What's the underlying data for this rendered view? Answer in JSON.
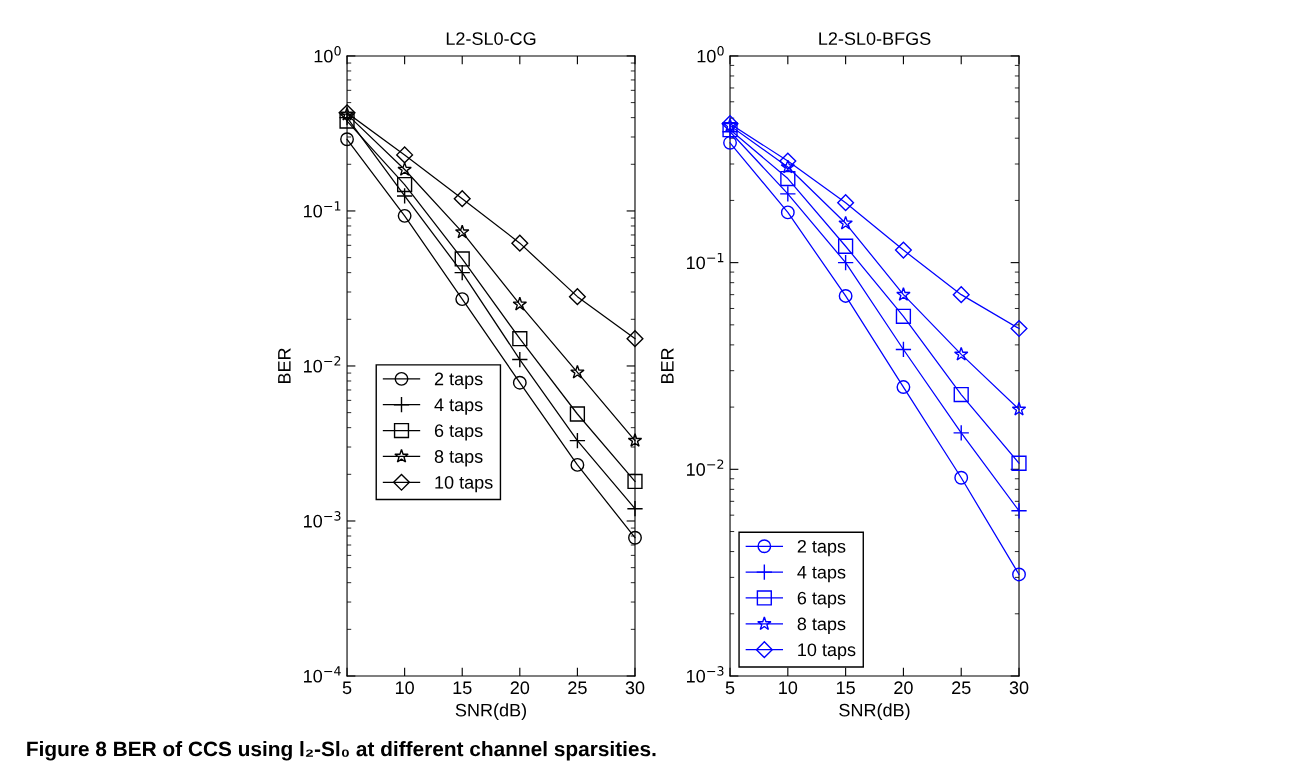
{
  "chart_data": [
    {
      "type": "line",
      "title": "L2-SL0-CG",
      "xlabel": "SNR(dB)",
      "ylabel": "BER",
      "log": "y",
      "grid": false,
      "legend": "bottom left",
      "line_style": "solid",
      "x": [
        5,
        10,
        15,
        20,
        25,
        30
      ],
      "xlim": [
        5,
        30
      ],
      "xticks": [
        5,
        10,
        15,
        20,
        25,
        30
      ],
      "ylim": [
        0.0001,
        1
      ],
      "yticks": [
        {
          "value": 0.0001,
          "label": "10$^{−4}$"
        },
        {
          "value": 0.001,
          "label": "10$^{−3}$"
        },
        {
          "value": 0.01,
          "label": "10$^{−2}$"
        },
        {
          "value": 0.1,
          "label": "10$^{−1}$"
        },
        {
          "value": 1,
          "label": "10$^{0}$"
        }
      ],
      "annotations": [
        "Figure 8 BER of CCS using l₂-Sl₀ at different channel sparsities."
      ],
      "series": [
        {
          "name": "2 taps",
          "color": "#000000",
          "marker": "circle",
          "values": [
            0.29,
            0.093,
            0.027,
            0.0078,
            0.0023,
            0.00078
          ]
        },
        {
          "name": "4 taps",
          "color": "#000000",
          "marker": "cross",
          "values": [
            0.4,
            0.125,
            0.04,
            0.011,
            0.0033,
            0.0012
          ]
        },
        {
          "name": "6 taps",
          "color": "#000000",
          "marker": "square",
          "values": [
            0.38,
            0.148,
            0.049,
            0.015,
            0.0049,
            0.0018
          ]
        },
        {
          "name": "8 taps",
          "color": "#000000",
          "marker": "star",
          "values": [
            0.42,
            0.185,
            0.073,
            0.025,
            0.0091,
            0.0033
          ]
        },
        {
          "name": "10 taps",
          "color": "#000000",
          "marker": "diamond",
          "values": [
            0.43,
            0.23,
            0.12,
            0.062,
            0.028,
            0.015
          ]
        }
      ]
    },
    {
      "type": "line",
      "title": "L2-SL0-BFGS",
      "xlabel": "SNR(dB)",
      "ylabel": "BER",
      "log": "y",
      "grid": false,
      "legend": "bottom left",
      "line_style": "solid",
      "x": [
        5,
        10,
        15,
        20,
        25,
        30
      ],
      "xlim": [
        5,
        30
      ],
      "xticks": [
        5,
        10,
        15,
        20,
        25,
        30
      ],
      "ylim": [
        0.001,
        1
      ],
      "yticks": [
        {
          "value": 0.001,
          "label": "10$^{−3}$"
        },
        {
          "value": 0.01,
          "label": "10$^{−2}$"
        },
        {
          "value": 0.1,
          "label": "10$^{−1}$"
        },
        {
          "value": 1,
          "label": "10$^{0}$"
        }
      ],
      "series": [
        {
          "name": "2 taps",
          "color": "#0000ff",
          "marker": "circle",
          "values": [
            0.38,
            0.175,
            0.069,
            0.025,
            0.0091,
            0.0031
          ]
        },
        {
          "name": "4 taps",
          "color": "#0000ff",
          "marker": "cross",
          "values": [
            0.43,
            0.215,
            0.1,
            0.038,
            0.015,
            0.0063
          ]
        },
        {
          "name": "6 taps",
          "color": "#0000ff",
          "marker": "square",
          "values": [
            0.44,
            0.255,
            0.12,
            0.055,
            0.023,
            0.0107
          ]
        },
        {
          "name": "8 taps",
          "color": "#0000ff",
          "marker": "star",
          "values": [
            0.46,
            0.29,
            0.155,
            0.07,
            0.036,
            0.0195
          ]
        },
        {
          "name": "10 taps",
          "color": "#0000ff",
          "marker": "diamond",
          "values": [
            0.47,
            0.31,
            0.195,
            0.115,
            0.07,
            0.048
          ]
        }
      ]
    }
  ]
}
